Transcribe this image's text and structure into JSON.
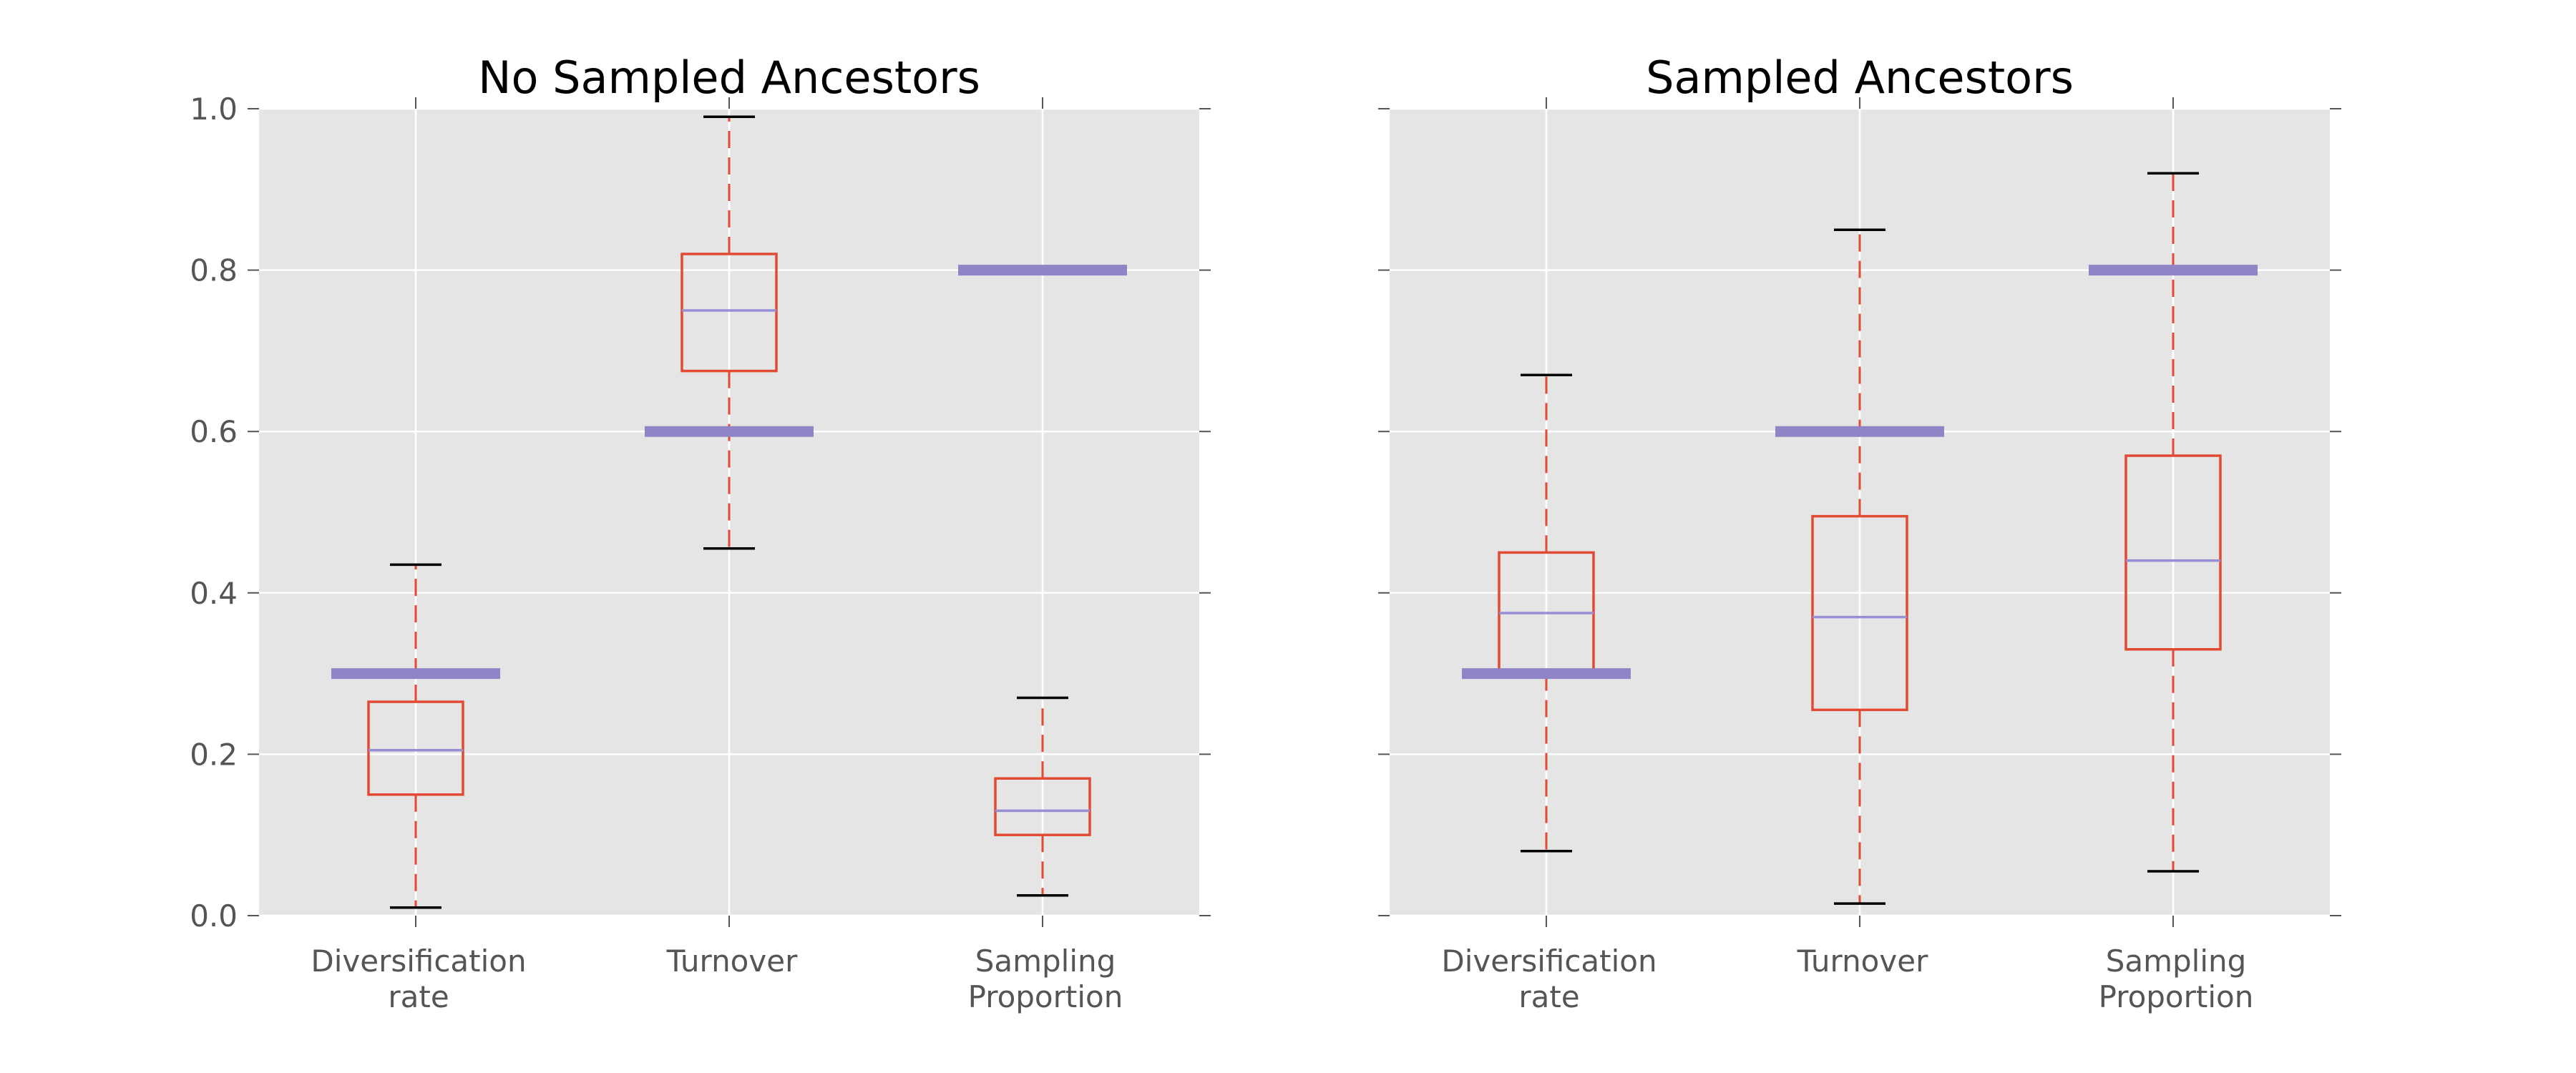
{
  "chart_data": [
    {
      "type": "box",
      "title": "No Sampled Ancestors",
      "categories": [
        "Diversification\nrate",
        "Turnover",
        "Sampling\nProportion"
      ],
      "ylim": [
        0.0,
        1.0
      ],
      "yticks": [
        "0.0",
        "0.2",
        "0.4",
        "0.6",
        "0.8",
        "1.0"
      ],
      "show_yticklabels": true,
      "grid": true,
      "boxes": [
        {
          "whisker_low": 0.01,
          "q1": 0.15,
          "median": 0.205,
          "q3": 0.265,
          "whisker_high": 0.435
        },
        {
          "whisker_low": 0.455,
          "q1": 0.675,
          "median": 0.75,
          "q3": 0.82,
          "whisker_high": 0.99
        },
        {
          "whisker_low": 0.025,
          "q1": 0.1,
          "median": 0.13,
          "q3": 0.17,
          "whisker_high": 0.27
        }
      ],
      "true_values": [
        0.3,
        0.6,
        0.8
      ]
    },
    {
      "type": "box",
      "title": "Sampled Ancestors",
      "categories": [
        "Diversification\nrate",
        "Turnover",
        "Sampling\nProportion"
      ],
      "ylim": [
        0.0,
        1.0
      ],
      "yticks": [
        "0.0",
        "0.2",
        "0.4",
        "0.6",
        "0.8",
        "1.0"
      ],
      "show_yticklabels": false,
      "grid": true,
      "boxes": [
        {
          "whisker_low": 0.08,
          "q1": 0.3,
          "median": 0.375,
          "q3": 0.45,
          "whisker_high": 0.67
        },
        {
          "whisker_low": 0.015,
          "q1": 0.255,
          "median": 0.37,
          "q3": 0.495,
          "whisker_high": 0.85
        },
        {
          "whisker_low": 0.055,
          "q1": 0.33,
          "median": 0.44,
          "q3": 0.57,
          "whisker_high": 0.92
        }
      ],
      "true_values": [
        0.3,
        0.6,
        0.8
      ]
    }
  ],
  "colors": {
    "background": "#e5e5e5",
    "grid": "#ffffff",
    "box": "#e24a33",
    "median": "#988ed5",
    "true_value": "#8e84c6",
    "cap": "#000000",
    "tick_label": "#555555"
  }
}
